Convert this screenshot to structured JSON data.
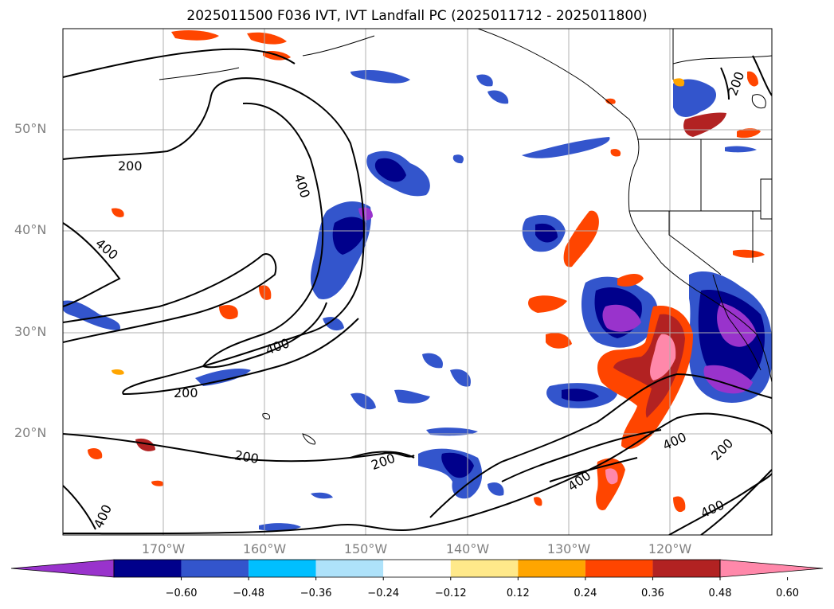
{
  "title": "2025011500 F036 IVT, IVT Landfall PC (2025011712 - 2025011800)",
  "lat_labels": [
    "50°N",
    "40°N",
    "30°N",
    "20°N"
  ],
  "lon_labels": [
    "170°W",
    "160°W",
    "150°W",
    "140°W",
    "130°W",
    "120°W"
  ],
  "contour_labels": [
    "200",
    "400",
    "400",
    "400",
    "200",
    "200",
    "200",
    "400",
    "400",
    "200",
    "400",
    "200",
    "400"
  ],
  "colorbar": {
    "ticks": [
      "−0.60",
      "−0.48",
      "−0.36",
      "−0.24",
      "−0.12",
      "0.12",
      "0.24",
      "0.36",
      "0.48",
      "0.60"
    ],
    "colors": [
      "#9933cc",
      "#00008b",
      "#3355cc",
      "#00bfff",
      "#aee2fa",
      "#ffffff",
      "#ffe98a",
      "#ffa500",
      "#ff4500",
      "#b22222",
      "#ff88aa"
    ]
  },
  "map": {
    "projection": "Plate Carree",
    "lon_range": [
      -180,
      -110
    ],
    "lat_range": [
      10,
      60
    ],
    "grid_lons": [
      -170,
      -160,
      -150,
      -140,
      -130,
      -120
    ],
    "grid_lats": [
      20,
      30,
      40,
      50
    ]
  }
}
